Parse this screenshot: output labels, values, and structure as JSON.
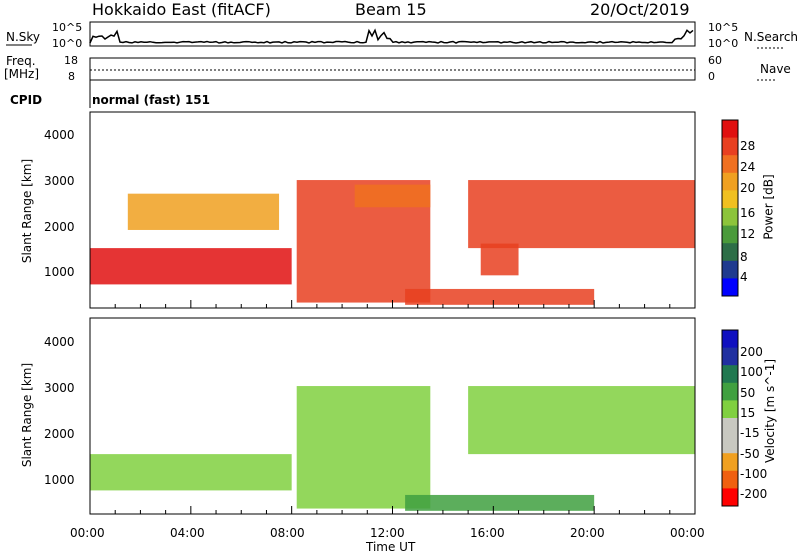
{
  "header": {
    "station": "Hokkaido East (fitACF)",
    "beam": "Beam 15",
    "date": "20/Oct/2019"
  },
  "strip": {
    "nsky_label": "N.Sky",
    "nsearch_label": "N.Search",
    "freq_label": "Freq.",
    "freq_unit": "[MHz]",
    "nave_label": "Nave",
    "cpid_label": "CPID",
    "cpid_value": "normal (fast) 151",
    "noise_ticks": [
      "10^5",
      "10^0"
    ],
    "freq_ticks": [
      "18",
      "8"
    ],
    "nave_ticks": [
      "60",
      "0"
    ]
  },
  "panels": {
    "ylabel": "Slant Range [km]",
    "yticks": [
      "4000",
      "3000",
      "2000",
      "1000"
    ],
    "xlabel": "Time UT",
    "xticks": [
      "00:00",
      "04:00",
      "08:00",
      "12:00",
      "16:00",
      "20:00",
      "00:00"
    ]
  },
  "colorbars": {
    "power_label": "Power [dB]",
    "power_ticks": [
      "28",
      "24",
      "20",
      "16",
      "12",
      "8",
      "4"
    ],
    "velocity_label": "Velocity [m s^-1]",
    "velocity_ticks": [
      "200",
      "100",
      "50",
      "15",
      "-15",
      "-50",
      "-100",
      "-200"
    ]
  },
  "colors": {
    "power_scale": [
      "#0000ff",
      "#1f3a8f",
      "#2d6e47",
      "#4a9a3a",
      "#8cc43a",
      "#f0c020",
      "#f0a020",
      "#f07020",
      "#e84020",
      "#e01010"
    ],
    "velocity_scale": [
      "#ff0000",
      "#f06010",
      "#f0a020",
      "#c8c8c0",
      "#c8c8c0",
      "#80d040",
      "#40a040",
      "#207850",
      "#2030a0",
      "#1010c0"
    ]
  },
  "chart_data": [
    {
      "type": "heatmap",
      "title": "Power",
      "xlabel": "Time UT",
      "ylabel": "Slant Range [km]",
      "xlim": [
        "00:00",
        "24:00"
      ],
      "ylim": [
        180,
        4500
      ],
      "value_range": [
        0,
        30
      ],
      "bands": [
        {
          "t0": 0.0,
          "t1": 8.0,
          "r0": 700,
          "r1": 1500,
          "value": 27
        },
        {
          "t0": 1.5,
          "t1": 7.5,
          "r0": 1900,
          "r1": 2700,
          "value": 20
        },
        {
          "t0": 8.2,
          "t1": 13.5,
          "r0": 300,
          "r1": 3000,
          "value": 25
        },
        {
          "t0": 10.5,
          "t1": 13.5,
          "r0": 2400,
          "r1": 2900,
          "value": 22
        },
        {
          "t0": 15.0,
          "t1": 24.0,
          "r0": 1500,
          "r1": 3000,
          "value": 24
        },
        {
          "t0": 15.5,
          "t1": 17.0,
          "r0": 900,
          "r1": 1600,
          "value": 24
        },
        {
          "t0": 12.5,
          "t1": 20.0,
          "r0": 250,
          "r1": 600,
          "value": 26
        }
      ]
    },
    {
      "type": "heatmap",
      "title": "Velocity",
      "xlabel": "Time UT",
      "ylabel": "Slant Range [km]",
      "xlim": [
        "00:00",
        "24:00"
      ],
      "ylim": [
        180,
        4500
      ],
      "value_range": [
        -200,
        200
      ],
      "bands": [
        {
          "t0": 0.0,
          "t1": 8.0,
          "r0": 700,
          "r1": 1500,
          "value": 0
        },
        {
          "t0": 8.2,
          "t1": 13.5,
          "r0": 300,
          "r1": 3000,
          "value": 0
        },
        {
          "t0": 15.0,
          "t1": 24.0,
          "r0": 1500,
          "r1": 3000,
          "value": 0
        },
        {
          "t0": 12.5,
          "t1": 20.0,
          "r0": 250,
          "r1": 600,
          "value": 40
        }
      ]
    }
  ]
}
